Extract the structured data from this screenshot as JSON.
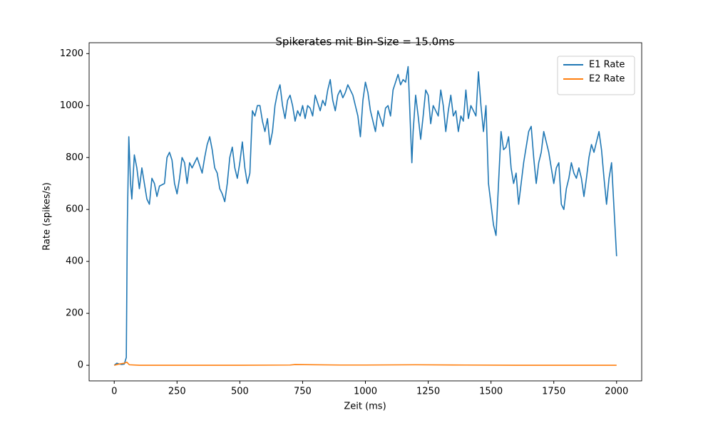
{
  "chart_data": {
    "type": "line",
    "title": "Spikerates mit Bin-Size = 15.0ms",
    "x_label": "Zeit (ms)",
    "y_label": "Rate (spikes/s)",
    "xlim": [
      -100,
      2100
    ],
    "ylim": [
      -60,
      1242
    ],
    "xticks": [
      0,
      250,
      500,
      750,
      1000,
      1250,
      1500,
      1750,
      2000
    ],
    "yticks": [
      0,
      200,
      400,
      600,
      800,
      1000,
      1200
    ],
    "legend": "upper right",
    "series": [
      {
        "name": "E1 Rate",
        "color": "#1f77b4",
        "x": [
          0,
          10,
          20,
          30,
          40,
          48,
          52,
          58,
          65,
          70,
          80,
          90,
          100,
          110,
          120,
          130,
          140,
          150,
          160,
          170,
          180,
          200,
          210,
          220,
          230,
          240,
          250,
          260,
          270,
          280,
          290,
          300,
          310,
          330,
          350,
          360,
          370,
          380,
          390,
          400,
          410,
          420,
          430,
          440,
          450,
          460,
          470,
          480,
          490,
          500,
          510,
          520,
          530,
          540,
          550,
          560,
          570,
          580,
          590,
          600,
          610,
          620,
          630,
          640,
          650,
          660,
          670,
          680,
          690,
          700,
          710,
          720,
          730,
          740,
          750,
          760,
          770,
          780,
          790,
          800,
          810,
          820,
          830,
          840,
          850,
          860,
          870,
          880,
          890,
          900,
          910,
          920,
          930,
          940,
          950,
          960,
          970,
          980,
          990,
          1000,
          1010,
          1020,
          1030,
          1040,
          1050,
          1060,
          1070,
          1080,
          1090,
          1100,
          1110,
          1120,
          1130,
          1140,
          1150,
          1160,
          1170,
          1180,
          1185,
          1190,
          1200,
          1210,
          1220,
          1230,
          1240,
          1250,
          1260,
          1270,
          1280,
          1290,
          1300,
          1310,
          1320,
          1330,
          1340,
          1350,
          1360,
          1370,
          1380,
          1390,
          1400,
          1410,
          1420,
          1430,
          1440,
          1450,
          1460,
          1470,
          1480,
          1490,
          1500,
          1510,
          1520,
          1530,
          1540,
          1550,
          1560,
          1570,
          1580,
          1590,
          1600,
          1610,
          1620,
          1630,
          1640,
          1650,
          1660,
          1670,
          1680,
          1690,
          1700,
          1710,
          1720,
          1730,
          1740,
          1750,
          1760,
          1770,
          1780,
          1790,
          1800,
          1810,
          1820,
          1830,
          1840,
          1850,
          1860,
          1870,
          1880,
          1890,
          1900,
          1910,
          1920,
          1930,
          1940,
          1950,
          1960,
          1970,
          1980,
          1990,
          2000
        ],
        "values": [
          0,
          8,
          5,
          3,
          5,
          30,
          540,
          880,
          700,
          640,
          810,
          760,
          680,
          760,
          700,
          640,
          620,
          720,
          700,
          650,
          690,
          700,
          800,
          820,
          790,
          700,
          660,
          720,
          800,
          780,
          700,
          780,
          760,
          800,
          740,
          800,
          850,
          880,
          830,
          760,
          740,
          680,
          660,
          630,
          700,
          800,
          840,
          760,
          720,
          780,
          860,
          760,
          700,
          740,
          980,
          960,
          1000,
          1000,
          940,
          900,
          950,
          850,
          900,
          1000,
          1050,
          1080,
          1000,
          950,
          1020,
          1040,
          1000,
          940,
          980,
          960,
          1000,
          950,
          1000,
          990,
          960,
          1040,
          1010,
          980,
          1020,
          1000,
          1060,
          1100,
          1020,
          980,
          1040,
          1060,
          1030,
          1050,
          1080,
          1060,
          1040,
          1000,
          960,
          880,
          1020,
          1090,
          1050,
          980,
          940,
          900,
          980,
          950,
          920,
          990,
          1000,
          960,
          1060,
          1090,
          1120,
          1080,
          1100,
          1090,
          1150,
          900,
          780,
          900,
          1040,
          960,
          870,
          960,
          1060,
          1040,
          930,
          1000,
          980,
          960,
          1060,
          1000,
          900,
          980,
          1040,
          960,
          980,
          900,
          960,
          940,
          1060,
          950,
          1000,
          980,
          960,
          1130,
          1000,
          900,
          1000,
          700,
          620,
          540,
          500,
          700,
          900,
          830,
          840,
          880,
          760,
          700,
          740,
          620,
          700,
          780,
          840,
          900,
          920,
          800,
          700,
          780,
          820,
          900,
          860,
          820,
          760,
          700,
          760,
          780,
          620,
          600,
          680,
          720,
          780,
          740,
          720,
          760,
          720,
          650,
          720,
          800,
          850,
          820,
          860,
          900,
          830,
          720,
          620,
          720,
          780,
          600,
          420
        ]
      },
      {
        "name": "E2 Rate",
        "color": "#ff7f0e",
        "x": [
          0,
          20,
          40,
          50,
          60,
          100,
          300,
          500,
          700,
          720,
          900,
          1000,
          1200,
          1400,
          1600,
          1800,
          2000
        ],
        "values": [
          0,
          5,
          8,
          12,
          2,
          0,
          0,
          0,
          1,
          3,
          1,
          1,
          2,
          1,
          0,
          0,
          0
        ]
      }
    ]
  }
}
